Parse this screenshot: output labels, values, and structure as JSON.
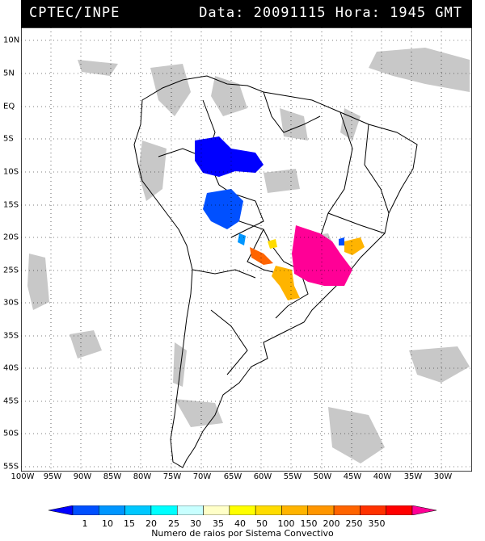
{
  "header": {
    "source": "CPTEC/INPE",
    "datetime": "Data: 20091115 Hora: 1945 GMT"
  },
  "axes": {
    "lon_labels": [
      "100W",
      "95W",
      "90W",
      "85W",
      "80W",
      "75W",
      "70W",
      "65W",
      "60W",
      "55W",
      "50W",
      "45W",
      "40W",
      "35W",
      "30W"
    ],
    "lat_labels": [
      "10N",
      "5N",
      "EQ",
      "5S",
      "10S",
      "15S",
      "20S",
      "25S",
      "30S",
      "35S",
      "40S",
      "45S",
      "50S",
      "55S"
    ]
  },
  "colorbar": {
    "ticks": [
      "1",
      "10",
      "15",
      "20",
      "25",
      "30",
      "35",
      "40",
      "50",
      "100",
      "150",
      "200",
      "250",
      "350"
    ],
    "colors": [
      "#0000ff",
      "#0050ff",
      "#0096ff",
      "#00c8ff",
      "#00ffff",
      "#c8ffff",
      "#ffffc8",
      "#ffff00",
      "#ffdc00",
      "#ffb400",
      "#ff9600",
      "#ff6400",
      "#ff3200",
      "#ff0000",
      "#ff0096"
    ],
    "label": "Numero de raios por Sistema Convectivo"
  },
  "legend_colors": {
    "cloud": "#c8c8c8",
    "grid": "#000000",
    "frame": "#000000"
  }
}
